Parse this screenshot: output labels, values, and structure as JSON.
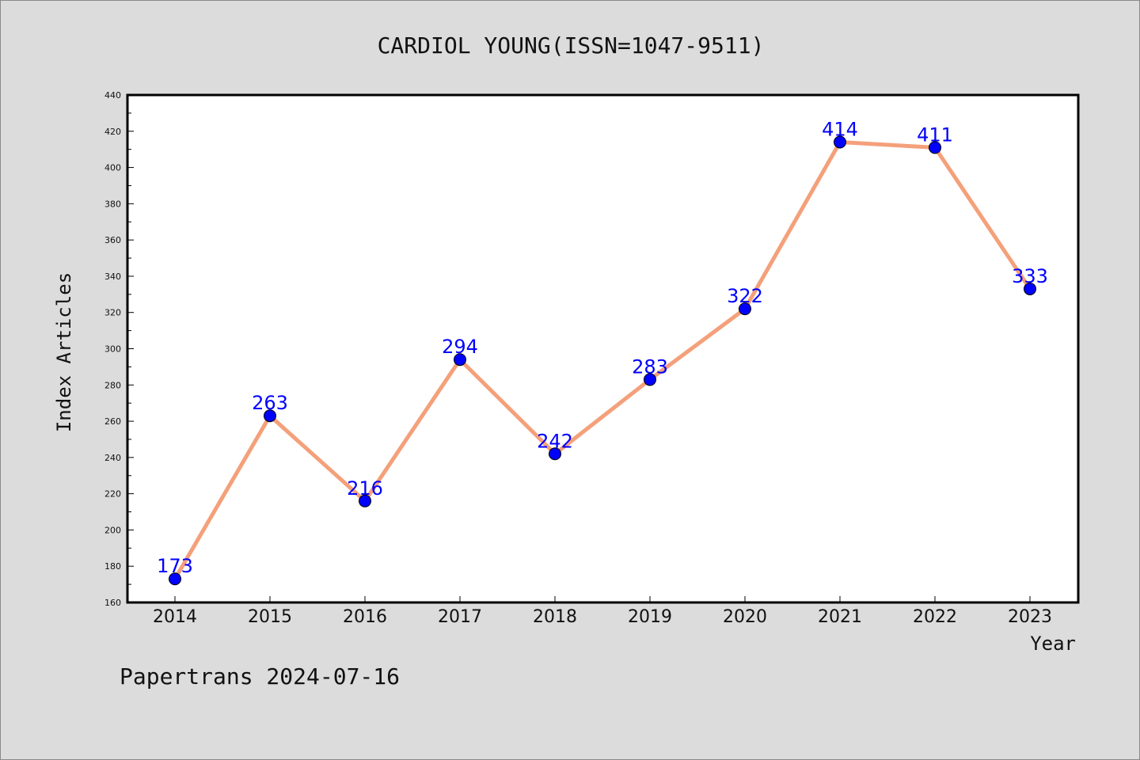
{
  "chart_data": {
    "type": "line",
    "title": "CARDIOL YOUNG(ISSN=1047-9511)",
    "xlabel": "Year",
    "ylabel": "Index Articles",
    "categories": [
      "2014",
      "2015",
      "2016",
      "2017",
      "2018",
      "2019",
      "2020",
      "2021",
      "2022",
      "2023"
    ],
    "series": [
      {
        "values": [
          173,
          263,
          216,
          294,
          242,
          283,
          322,
          414,
          411,
          333
        ],
        "line_color": "#f4a07a",
        "marker_color": "#0000ff"
      }
    ],
    "data_labels": [
      "173",
      "263",
      "216",
      "294",
      "242",
      "283",
      "322",
      "414",
      "411",
      "333"
    ],
    "ylim": [
      160,
      440
    ],
    "yticks": [
      "160",
      "180",
      "200",
      "220",
      "240",
      "260",
      "280",
      "300",
      "320",
      "340",
      "360",
      "380",
      "400",
      "420",
      "440"
    ],
    "grid": false,
    "background_color": "#dcdcdc",
    "plot_background": "#ffffff"
  },
  "footer": {
    "text": "Papertrans 2024-07-16"
  }
}
